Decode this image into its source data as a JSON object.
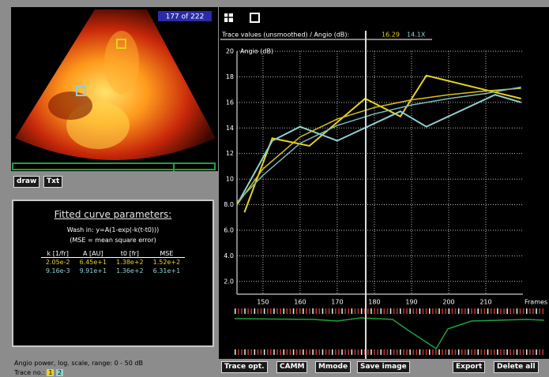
{
  "ui": {
    "frame_counter": "177 of 222",
    "buttons_left": [
      "draw",
      "Txt"
    ],
    "readout": {
      "label": "Trace values (unsmoothed) / Angio (dB):",
      "values": [
        "16.29",
        "14.1X"
      ]
    },
    "panel": {
      "title": "Fitted curve parameters:",
      "formula": "Wash in: y=A(1-exp(-k(t-t0)))",
      "note": "(MSE = mean square error)",
      "header": [
        "k [1/fr]",
        "A [AU]",
        "t0 [fr]",
        "MSE"
      ],
      "rows": [
        [
          "2.05e-2",
          "6.45e+1",
          "1.38e+2",
          "1.52e+2"
        ],
        [
          "9.16e-3",
          "9.91e+1",
          "1.36e+2",
          "6.31e+1"
        ]
      ]
    },
    "status": "Angio power, log. scale, range: 0 - 50 dB",
    "trace_label": "Trace no.:",
    "traces": [
      "1",
      "2"
    ],
    "buttons_bottom": [
      "Trace opt.",
      "CAMM",
      "Mmode",
      "Save image",
      "Export",
      "Delete all"
    ]
  },
  "chart_data": {
    "type": "line",
    "ylabel": "Angio (dB)",
    "xlabel": "Frames",
    "xlim": [
      143,
      220
    ],
    "ylim": [
      1,
      20
    ],
    "xticks": [
      150,
      160,
      170,
      180,
      190,
      200,
      210
    ],
    "yticks": [
      {
        "value": 2,
        "label": "2.0"
      },
      {
        "value": 4,
        "label": "4.0"
      },
      {
        "value": 6,
        "label": "6.0"
      },
      {
        "value": 8,
        "label": "8.0"
      },
      10,
      12,
      14,
      16,
      18,
      20
    ],
    "grid": true,
    "series": [
      {
        "color": "#e8d21e",
        "x": [
          145,
          152.5,
          162.5,
          177.5,
          187,
          194,
          219.5
        ],
        "values": [
          7.4,
          13.2,
          12.6,
          16.3,
          14.9,
          18.1,
          16.3
        ]
      },
      {
        "color": "#8fd0d0",
        "x": [
          143,
          152.5,
          160,
          170,
          187,
          194,
          212.5,
          219.5
        ],
        "values": [
          8.0,
          13.0,
          14.1,
          13.0,
          15.3,
          14.1,
          16.6,
          16.0
        ]
      },
      {
        "color": "#d8c21a",
        "x": [
          143,
          150,
          160,
          170,
          180,
          190,
          200,
          210,
          219.5
        ],
        "values": [
          8.0,
          10.8,
          13.3,
          14.7,
          15.6,
          16.2,
          16.6,
          16.9,
          17.1
        ]
      },
      {
        "color": "#7fbcbc",
        "x": [
          143,
          150,
          160,
          170,
          180,
          190,
          200,
          210,
          219.5
        ],
        "values": [
          8.2,
          10.3,
          12.8,
          14.2,
          15.1,
          15.8,
          16.3,
          16.7,
          17.2
        ]
      }
    ]
  }
}
